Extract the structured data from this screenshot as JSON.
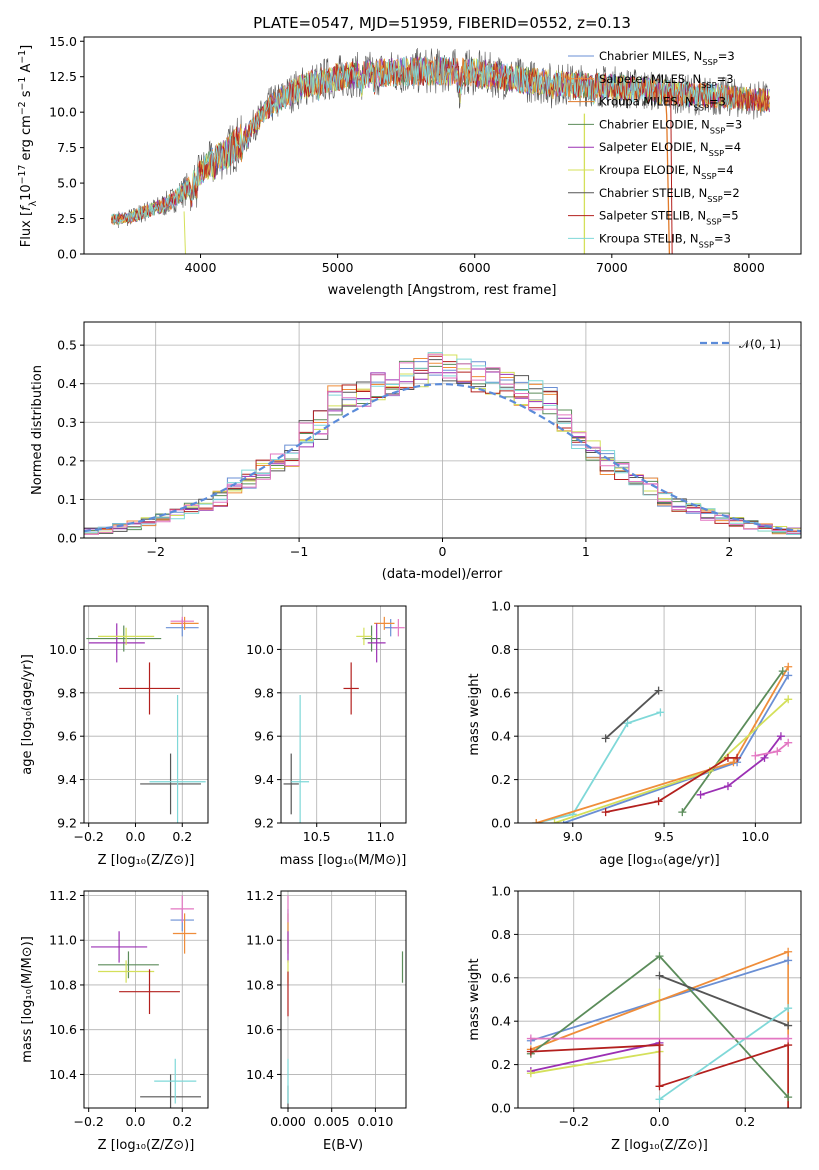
{
  "colors": [
    "#6a8fd4",
    "#ef8d3a",
    "#e07a2a",
    "#5b8c5a",
    "#9b30b4",
    "#d4e05a",
    "#555555",
    "#b3201e",
    "#7fd8d8"
  ],
  "extra_colors": {
    "pink": "#e377c2",
    "gauss": "#5b8bd9"
  },
  "chart_data": [
    {
      "type": "line",
      "title": "PLATE=0547, MJD=51959, FIBERID=0552, z=0.13",
      "xlabel": "wavelength [Angstrom, rest frame]",
      "ylabel": "Flux [fλ10⁻¹⁷ erg cm⁻² s⁻¹ A⁻¹]",
      "xlim": [
        3150,
        8380
      ],
      "ylim": [
        0,
        15.3
      ],
      "xticks": [
        4000,
        5000,
        6000,
        7000,
        8000
      ],
      "yticks": [
        0.0,
        2.5,
        5.0,
        7.5,
        10.0,
        12.5,
        15.0
      ],
      "grid": false,
      "legend": "top-right",
      "legend_entries": [
        "Chabrier MILES, N_SSP=3",
        "Salpeter MILES, N_SSP=3",
        "Kroupa MILES, N_SSP=3",
        "Chabrier ELODIE, N_SSP=3",
        "Salpeter ELODIE, N_SSP=4",
        "Kroupa ELODIE, N_SSP=4",
        "Chabrier STELIB, N_SSP=2",
        "Salpeter STELIB, N_SSP=5",
        "Kroupa STELIB, N_SSP=3"
      ],
      "continuum": {
        "x": [
          3350,
          3500,
          3600,
          3700,
          3800,
          3900,
          4000,
          4100,
          4200,
          4300,
          4400,
          4500,
          4600,
          4700,
          4800,
          4900,
          5000,
          5200,
          5400,
          5600,
          5800,
          6000,
          6200,
          6400,
          6600,
          6800,
          7000,
          7200,
          7400,
          7600,
          7800,
          8000,
          8150
        ],
        "y": [
          2.4,
          2.6,
          3.0,
          3.3,
          3.8,
          4.6,
          5.8,
          6.6,
          7.2,
          8.1,
          9.2,
          10.4,
          11.0,
          11.6,
          12.0,
          12.3,
          12.5,
          12.7,
          12.8,
          12.9,
          12.9,
          12.8,
          12.5,
          12.2,
          12.0,
          11.9,
          11.8,
          11.6,
          11.4,
          11.2,
          11.1,
          10.9,
          10.8
        ]
      }
    },
    {
      "type": "histogram",
      "xlabel": "(data-model)/error",
      "ylabel": "Normed distribution",
      "xlim": [
        -2.5,
        2.5
      ],
      "ylim": [
        0,
        0.56
      ],
      "xticks": [
        -2,
        -1,
        0,
        1,
        2
      ],
      "yticks": [
        0.0,
        0.1,
        0.2,
        0.3,
        0.4,
        0.5
      ],
      "grid": true,
      "legend": "top-right",
      "legend_label": "𝒩(0, 1)",
      "bin_width": 0.1
    },
    {
      "type": "scatter",
      "xlabel": "Z [log₁₀(Z/Z⊙)]",
      "ylabel": "age  [log₁₀(age/yr)]",
      "xlim": [
        -0.22,
        0.31
      ],
      "ylim": [
        9.2,
        10.2
      ],
      "xticks": [
        -0.2,
        0.0,
        0.2
      ],
      "yticks": [
        9.2,
        9.4,
        9.6,
        9.8,
        10.0
      ],
      "grid": true,
      "points": [
        {
          "x": 0.2,
          "y": 10.1,
          "xerr": 0.07,
          "yerr": 0.04,
          "c": 0
        },
        {
          "x": 0.21,
          "y": 10.12,
          "xerr": 0.06,
          "yerr": 0.03,
          "c": 1
        },
        {
          "x": 0.2,
          "y": 10.13,
          "xerr": 0.05,
          "yerr": 0.02,
          "c": 9
        },
        {
          "x": -0.05,
          "y": 10.05,
          "xerr": 0.16,
          "yerr": 0.06,
          "c": 3
        },
        {
          "x": -0.08,
          "y": 10.03,
          "xerr": 0.12,
          "yerr": 0.09,
          "c": 4
        },
        {
          "x": -0.04,
          "y": 10.06,
          "xerr": 0.12,
          "yerr": 0.04,
          "c": 5
        },
        {
          "x": 0.06,
          "y": 9.82,
          "xerr": 0.13,
          "yerr": 0.12,
          "c": 7
        },
        {
          "x": 0.15,
          "y": 9.38,
          "xerr": 0.13,
          "yerr": 0.14,
          "c": 6
        },
        {
          "x": 0.18,
          "y": 9.39,
          "xerr": 0.12,
          "yerr": 0.4,
          "c": 8
        }
      ]
    },
    {
      "type": "scatter",
      "xlabel": "mass [log₁₀(M/M⊙)]",
      "ylabel": "",
      "xlim": [
        10.22,
        11.2
      ],
      "ylim": [
        9.2,
        10.2
      ],
      "xticks": [
        10.5,
        11.0
      ],
      "yticks": [
        9.2,
        9.4,
        9.6,
        9.8,
        10.0
      ],
      "grid": true,
      "points": [
        {
          "x": 11.08,
          "y": 10.1,
          "xerr": 0.05,
          "yerr": 0.04,
          "c": 0
        },
        {
          "x": 11.03,
          "y": 10.12,
          "xerr": 0.08,
          "yerr": 0.03,
          "c": 1
        },
        {
          "x": 11.14,
          "y": 10.1,
          "xerr": 0.05,
          "yerr": 0.04,
          "c": 9
        },
        {
          "x": 10.93,
          "y": 10.05,
          "xerr": 0.07,
          "yerr": 0.06,
          "c": 3
        },
        {
          "x": 10.97,
          "y": 10.03,
          "xerr": 0.07,
          "yerr": 0.09,
          "c": 4
        },
        {
          "x": 10.87,
          "y": 10.06,
          "xerr": 0.06,
          "yerr": 0.04,
          "c": 5
        },
        {
          "x": 10.77,
          "y": 9.82,
          "xerr": 0.06,
          "yerr": 0.12,
          "c": 7
        },
        {
          "x": 10.3,
          "y": 9.38,
          "xerr": 0.06,
          "yerr": 0.14,
          "c": 6
        },
        {
          "x": 10.37,
          "y": 9.39,
          "xerr": 0.07,
          "yerr": 0.4,
          "c": 8
        }
      ]
    },
    {
      "type": "line",
      "xlabel": "age  [log₁₀(age/yr)]",
      "ylabel": "mass weight",
      "xlim": [
        8.7,
        10.25
      ],
      "ylim": [
        0,
        1.0
      ],
      "xticks": [
        9.0,
        9.5,
        10.0
      ],
      "yticks": [
        0.0,
        0.2,
        0.4,
        0.6,
        0.8,
        1.0
      ],
      "grid": true,
      "series": [
        {
          "c": 8,
          "x": [
            8.8,
            9.0,
            9.3,
            9.48
          ],
          "y": [
            0.0,
            0.04,
            0.46,
            0.51
          ]
        },
        {
          "c": 6,
          "x": [
            9.18,
            9.47
          ],
          "y": [
            0.39,
            0.61
          ]
        },
        {
          "c": 0,
          "x": [
            8.95,
            9.9,
            10.18
          ],
          "y": [
            0.0,
            0.28,
            0.68
          ]
        },
        {
          "c": 1,
          "x": [
            8.8,
            9.88,
            10.18
          ],
          "y": [
            0.0,
            0.28,
            0.72
          ]
        },
        {
          "c": 3,
          "x": [
            9.6,
            10.15
          ],
          "y": [
            0.05,
            0.7
          ]
        },
        {
          "c": 4,
          "x": [
            9.7,
            9.85,
            10.05,
            10.14
          ],
          "y": [
            0.13,
            0.17,
            0.3,
            0.4
          ]
        },
        {
          "c": 5,
          "x": [
            8.9,
            9.75,
            10.18
          ],
          "y": [
            0.0,
            0.24,
            0.57
          ]
        },
        {
          "c": 7,
          "x": [
            9.18,
            9.47,
            9.85,
            9.9
          ],
          "y": [
            0.05,
            0.1,
            0.3,
            0.3
          ]
        },
        {
          "c": 9,
          "x": [
            10.0,
            10.12,
            10.18
          ],
          "y": [
            0.31,
            0.33,
            0.37
          ]
        }
      ]
    },
    {
      "type": "scatter",
      "xlabel": "Z [log₁₀(Z/Z⊙)]",
      "ylabel": "mass [log₁₀(M/M⊙)]",
      "xlim": [
        -0.22,
        0.31
      ],
      "ylim": [
        10.25,
        11.22
      ],
      "xticks": [
        -0.2,
        0.0,
        0.2
      ],
      "yticks": [
        10.4,
        10.6,
        10.8,
        11.0,
        11.2
      ],
      "grid": true,
      "points": [
        {
          "x": 0.2,
          "y": 11.09,
          "xerr": 0.05,
          "yerr": 0.05,
          "c": 0
        },
        {
          "x": 0.21,
          "y": 11.03,
          "xerr": 0.05,
          "yerr": 0.09,
          "c": 1
        },
        {
          "x": 0.2,
          "y": 11.14,
          "xerr": 0.05,
          "yerr": 0.06,
          "c": 9
        },
        {
          "x": -0.03,
          "y": 10.89,
          "xerr": 0.13,
          "yerr": 0.06,
          "c": 3
        },
        {
          "x": -0.07,
          "y": 10.97,
          "xerr": 0.12,
          "yerr": 0.07,
          "c": 4
        },
        {
          "x": -0.04,
          "y": 10.86,
          "xerr": 0.12,
          "yerr": 0.05,
          "c": 5
        },
        {
          "x": 0.06,
          "y": 10.77,
          "xerr": 0.13,
          "yerr": 0.1,
          "c": 7
        },
        {
          "x": 0.15,
          "y": 10.3,
          "xerr": 0.13,
          "yerr": 0.1,
          "c": 6
        },
        {
          "x": 0.17,
          "y": 10.37,
          "xerr": 0.09,
          "yerr": 0.1,
          "c": 8
        }
      ]
    },
    {
      "type": "scatter",
      "xlabel": "E(B-V)",
      "ylabel": "",
      "xlim": [
        -0.0008,
        0.0135
      ],
      "ylim": [
        10.25,
        11.22
      ],
      "xticks": [
        0.0,
        0.005,
        0.01
      ],
      "yticks": [
        10.4,
        10.6,
        10.8,
        11.0,
        11.2
      ],
      "xtick_labels": [
        "0.000",
        "0.005",
        "0.010"
      ],
      "grid": true,
      "points": [
        {
          "x": 0.0,
          "y": 11.09,
          "xerr": 0,
          "yerr": 0.05,
          "c": 0
        },
        {
          "x": 0.0,
          "y": 11.03,
          "xerr": 0,
          "yerr": 0.09,
          "c": 1
        },
        {
          "x": 0.0,
          "y": 11.14,
          "xerr": 0,
          "yerr": 0.06,
          "c": 9
        },
        {
          "x": 0.0131,
          "y": 10.88,
          "xerr": 0,
          "yerr": 0.07,
          "c": 3
        },
        {
          "x": 0.0,
          "y": 10.97,
          "xerr": 0,
          "yerr": 0.07,
          "c": 4
        },
        {
          "x": 0.0,
          "y": 10.86,
          "xerr": 0,
          "yerr": 0.05,
          "c": 5
        },
        {
          "x": 0.0,
          "y": 10.76,
          "xerr": 0,
          "yerr": 0.1,
          "c": 7
        },
        {
          "x": 0.0,
          "y": 10.3,
          "xerr": 0,
          "yerr": 0.05,
          "c": 6
        },
        {
          "x": 0.0,
          "y": 10.37,
          "xerr": 0,
          "yerr": 0.1,
          "c": 8
        }
      ]
    },
    {
      "type": "line",
      "xlabel": "Z [log₁₀(Z/Z⊙)]",
      "ylabel": "mass weight",
      "xlim": [
        -0.33,
        0.33
      ],
      "ylim": [
        0,
        1.0
      ],
      "xticks": [
        -0.2,
        0.0,
        0.2
      ],
      "yticks": [
        0.0,
        0.2,
        0.4,
        0.6,
        0.8,
        1.0
      ],
      "grid": true,
      "series": [
        {
          "c": 0,
          "x": [
            -0.3,
            0.3
          ],
          "y": [
            0.31,
            0.68
          ]
        },
        {
          "c": 1,
          "x": [
            -0.3,
            0.3
          ],
          "y": [
            0.27,
            0.72
          ]
        },
        {
          "c": 3,
          "x": [
            -0.3,
            0.0,
            0.3
          ],
          "y": [
            0.25,
            0.7,
            0.05
          ]
        },
        {
          "c": 4,
          "x": [
            -0.3,
            0.0
          ],
          "y": [
            0.17,
            0.3
          ]
        },
        {
          "c": 5,
          "x": [
            -0.3,
            0.0
          ],
          "y": [
            0.16,
            0.26
          ]
        },
        {
          "c": 6,
          "x": [
            0.0,
            0.3
          ],
          "y": [
            0.61,
            0.38
          ]
        },
        {
          "c": 7,
          "x": [
            -0.3,
            0.0,
            0.0,
            0.3
          ],
          "y": [
            0.26,
            0.29,
            0.1,
            0.29
          ]
        },
        {
          "c": 8,
          "x": [
            0.0,
            0.3
          ],
          "y": [
            0.04,
            0.46
          ]
        },
        {
          "c": 9,
          "x": [
            -0.3,
            0.3
          ],
          "y": [
            0.32,
            0.32
          ]
        }
      ],
      "vlines": [
        {
          "c": 1,
          "x": 0.3,
          "y": [
            0.0,
            0.72
          ]
        },
        {
          "c": 5,
          "x": 0.0,
          "y": [
            0.4,
            0.55
          ]
        },
        {
          "c": 7,
          "x": 0.3,
          "y": [
            0.0,
            0.29
          ]
        }
      ]
    }
  ]
}
